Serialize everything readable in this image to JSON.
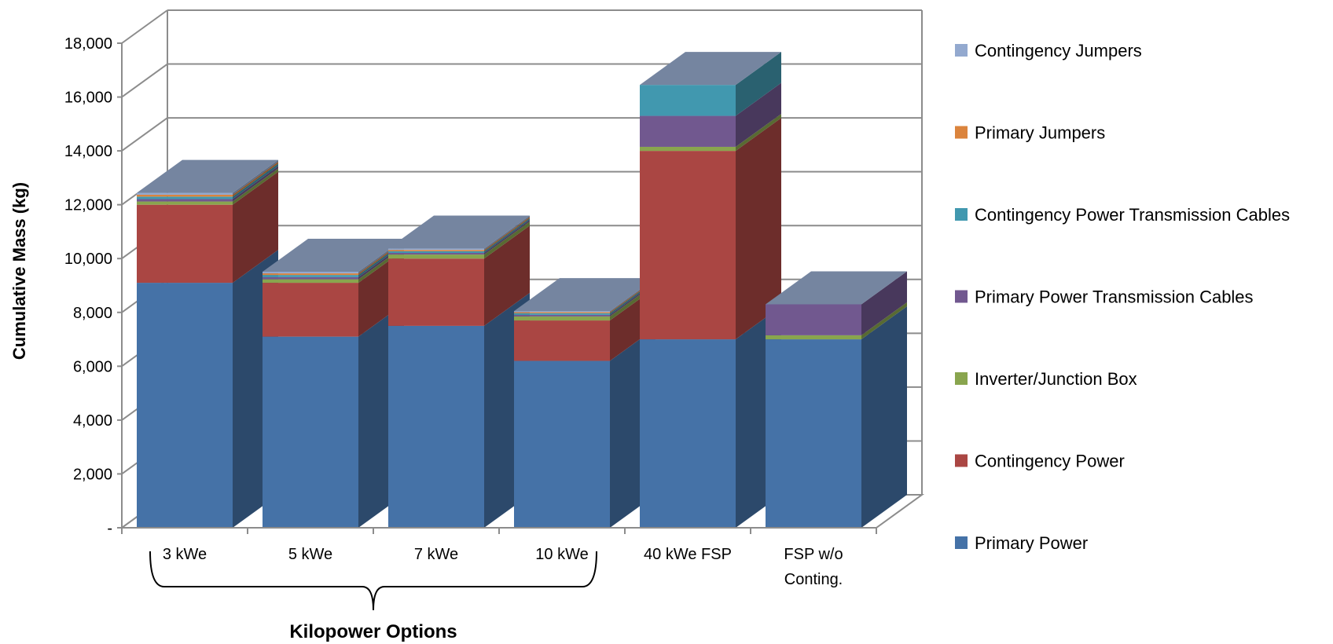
{
  "chart_data": {
    "type": "bar",
    "stacked": true,
    "three_d": true,
    "ylabel": "Cumulative Mass (kg)",
    "ylim": [
      0,
      18000
    ],
    "y_ticks": [
      0,
      2000,
      4000,
      6000,
      8000,
      10000,
      12000,
      14000,
      16000,
      18000
    ],
    "y_tick_labels": [
      "-",
      "2,000",
      "4,000",
      "6,000",
      "8,000",
      "10,000",
      "12,000",
      "14,000",
      "16,000",
      "18,000"
    ],
    "grid": true,
    "legend_position": "right",
    "categories": [
      [
        "3 kWe"
      ],
      [
        "5 kWe"
      ],
      [
        "7 kWe"
      ],
      [
        "10 kWe"
      ],
      [
        "40 kWe FSP"
      ],
      [
        "FSP w/o",
        "Conting."
      ]
    ],
    "group_bracket": {
      "label": "Kilopower Options",
      "from_category": 0,
      "to_category": 3
    },
    "series": [
      {
        "name": "Primary Power",
        "color": "#4572A7",
        "values": [
          9100,
          7100,
          7500,
          6200,
          7000,
          7000
        ]
      },
      {
        "name": "Contingency Power",
        "color": "#AA4643",
        "values": [
          2900,
          2000,
          2500,
          1500,
          7000,
          0
        ]
      },
      {
        "name": "Inverter/Junction Box",
        "color": "#89A54E",
        "values": [
          120,
          130,
          150,
          150,
          150,
          150
        ]
      },
      {
        "name": "Primary Power Transmission Cables",
        "color": "#71588F",
        "values": [
          90,
          80,
          60,
          60,
          1150,
          1150
        ]
      },
      {
        "name": "Contingency Power Transmission Cables",
        "color": "#4198AF",
        "values": [
          90,
          80,
          60,
          60,
          1150,
          0
        ]
      },
      {
        "name": "Primary Jumpers",
        "color": "#DB843D",
        "values": [
          70,
          60,
          50,
          40,
          0,
          0
        ]
      },
      {
        "name": "Contingency Jumpers",
        "color": "#93A9CF",
        "values": [
          70,
          60,
          50,
          40,
          0,
          0
        ]
      }
    ]
  }
}
